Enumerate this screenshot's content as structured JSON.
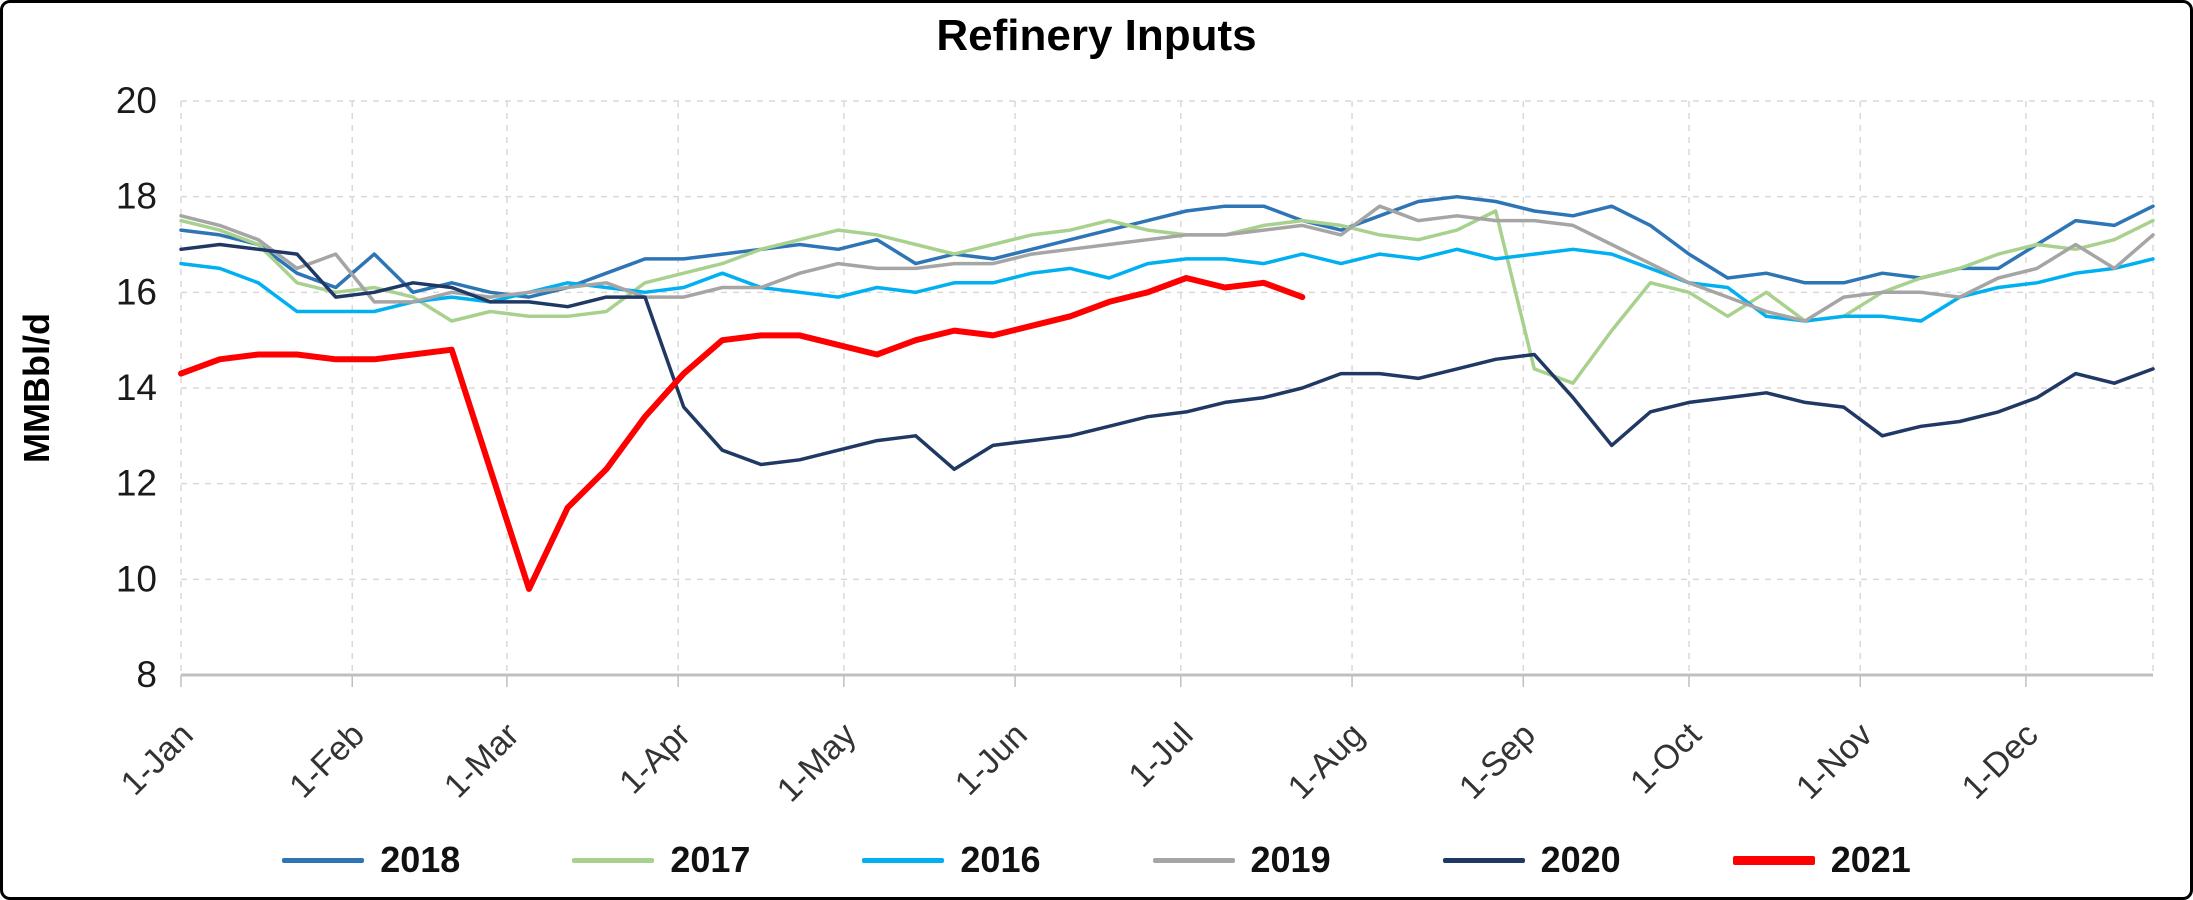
{
  "chart_data": {
    "type": "line",
    "title": "Refinery Inputs",
    "ylabel": "MMBbl/d",
    "ylim": [
      8,
      20
    ],
    "yticks": [
      8,
      10,
      12,
      14,
      16,
      18,
      20
    ],
    "x_tick_labels": [
      "1-Jan",
      "1-Feb",
      "1-Mar",
      "1-Apr",
      "1-May",
      "1-Jun",
      "1-Jul",
      "1-Aug",
      "1-Sep",
      "1-Oct",
      "1-Nov",
      "1-Dec"
    ],
    "x_tick_days": [
      0,
      31,
      59,
      90,
      120,
      151,
      181,
      212,
      243,
      273,
      304,
      334
    ],
    "x_domain_days": [
      0,
      357
    ],
    "x_unit": "weekly (7-day interval)",
    "grid": "dashed",
    "legend_position": "bottom",
    "colors": {
      "grid": "#D9D9D9",
      "axis": "#BFBFBF",
      "text": "#1a1a1a",
      "title": "#000000"
    },
    "series": [
      {
        "name": "2018",
        "color": "#2E75B6",
        "width": 3.5,
        "values": [
          17.3,
          17.2,
          17.0,
          16.4,
          16.1,
          16.8,
          16.0,
          16.2,
          16.0,
          15.9,
          16.1,
          16.4,
          16.7,
          16.7,
          16.8,
          16.9,
          17.0,
          16.9,
          17.1,
          16.6,
          16.8,
          16.7,
          16.9,
          17.1,
          17.3,
          17.5,
          17.7,
          17.8,
          17.8,
          17.5,
          17.3,
          17.6,
          17.9,
          18.0,
          17.9,
          17.7,
          17.6,
          17.8,
          17.4,
          16.8,
          16.3,
          16.4,
          16.2,
          16.2,
          16.4,
          16.3,
          16.5,
          16.5,
          17.0,
          17.5,
          17.4,
          17.8
        ]
      },
      {
        "name": "2017",
        "color": "#A9D18E",
        "width": 3.5,
        "values": [
          17.5,
          17.3,
          17.0,
          16.2,
          16.0,
          16.1,
          15.9,
          15.4,
          15.6,
          15.5,
          15.5,
          15.6,
          16.2,
          16.4,
          16.6,
          16.9,
          17.1,
          17.3,
          17.2,
          17.0,
          16.8,
          17.0,
          17.2,
          17.3,
          17.5,
          17.3,
          17.2,
          17.2,
          17.4,
          17.5,
          17.4,
          17.2,
          17.1,
          17.3,
          17.7,
          14.4,
          14.1,
          15.2,
          16.2,
          16.0,
          15.5,
          16.0,
          15.4,
          15.5,
          16.0,
          16.3,
          16.5,
          16.8,
          17.0,
          16.9,
          17.1,
          17.5
        ]
      },
      {
        "name": "2016",
        "color": "#00B0F0",
        "width": 3.5,
        "values": [
          16.6,
          16.5,
          16.2,
          15.6,
          15.6,
          15.6,
          15.8,
          15.9,
          15.8,
          16.0,
          16.2,
          16.1,
          16.0,
          16.1,
          16.4,
          16.1,
          16.0,
          15.9,
          16.1,
          16.0,
          16.2,
          16.2,
          16.4,
          16.5,
          16.3,
          16.6,
          16.7,
          16.7,
          16.6,
          16.8,
          16.6,
          16.8,
          16.7,
          16.9,
          16.7,
          16.8,
          16.9,
          16.8,
          16.5,
          16.2,
          16.1,
          15.5,
          15.4,
          15.5,
          15.5,
          15.4,
          15.9,
          16.1,
          16.2,
          16.4,
          16.5,
          16.7
        ]
      },
      {
        "name": "2019",
        "color": "#A5A5A5",
        "width": 3.5,
        "values": [
          17.6,
          17.4,
          17.1,
          16.5,
          16.8,
          15.8,
          15.8,
          16.0,
          15.9,
          16.0,
          16.1,
          16.2,
          15.9,
          15.9,
          16.1,
          16.1,
          16.4,
          16.6,
          16.5,
          16.5,
          16.6,
          16.6,
          16.8,
          16.9,
          17.0,
          17.1,
          17.2,
          17.2,
          17.3,
          17.4,
          17.2,
          17.8,
          17.5,
          17.6,
          17.5,
          17.5,
          17.4,
          17.0,
          16.6,
          16.2,
          15.9,
          15.6,
          15.4,
          15.9,
          16.0,
          16.0,
          15.9,
          16.3,
          16.5,
          17.0,
          16.5,
          17.2
        ]
      },
      {
        "name": "2020",
        "color": "#203864",
        "width": 3.5,
        "values": [
          16.9,
          17.0,
          16.9,
          16.8,
          15.9,
          16.0,
          16.2,
          16.1,
          15.8,
          15.8,
          15.7,
          15.9,
          15.9,
          13.6,
          12.7,
          12.4,
          12.5,
          12.7,
          12.9,
          13.0,
          12.3,
          12.8,
          12.9,
          13.0,
          13.2,
          13.4,
          13.5,
          13.7,
          13.8,
          14.0,
          14.3,
          14.3,
          14.2,
          14.4,
          14.6,
          14.7,
          13.8,
          12.8,
          13.5,
          13.7,
          13.8,
          13.9,
          13.7,
          13.6,
          13.0,
          13.2,
          13.3,
          13.5,
          13.8,
          14.3,
          14.1,
          14.4
        ]
      },
      {
        "name": "2021",
        "color": "#FF0000",
        "width": 6,
        "values": [
          14.3,
          14.6,
          14.7,
          14.7,
          14.6,
          14.6,
          14.7,
          14.8,
          12.3,
          9.8,
          11.5,
          12.3,
          13.4,
          14.3,
          15.0,
          15.1,
          15.1,
          14.9,
          14.7,
          15.0,
          15.2,
          15.1,
          15.3,
          15.5,
          15.8,
          16.0,
          16.3,
          16.1,
          16.2,
          15.9
        ]
      }
    ]
  }
}
